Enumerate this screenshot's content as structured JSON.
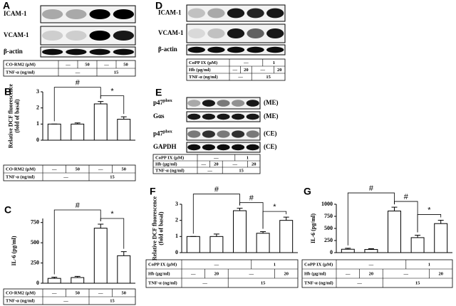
{
  "blots": [
    {
      "panel": "A",
      "rows": [
        {
          "text": "ICAM-1"
        },
        {
          "text": "VCAM-1"
        },
        {
          "text": "β-actin"
        }
      ],
      "treatments": [
        {
          "label": "CO-RM2 (μM)",
          "cells": [
            {
              "text": "—",
              "span": 1
            },
            {
              "text": "50",
              "span": 1
            },
            {
              "text": "—",
              "span": 1
            },
            {
              "text": "50",
              "span": 1
            }
          ]
        },
        {
          "label": "TNF-α (ng/ml)",
          "cells": [
            {
              "text": "—",
              "span": 2
            },
            {
              "text": "15",
              "span": 2
            }
          ]
        }
      ]
    },
    {
      "panel": "D",
      "rows": [
        {
          "text": "ICAM-1"
        },
        {
          "text": "VCAM-1"
        },
        {
          "text": "β-actin"
        }
      ],
      "treatments": [
        {
          "label": "CoPP IX (μM)",
          "cells": [
            {
              "text": "—",
              "span": 3
            },
            {
              "text": "1",
              "span": 2
            }
          ]
        },
        {
          "label": "Hb (μg/ml)",
          "cells": [
            {
              "text": "—",
              "span": 1
            },
            {
              "text": "20",
              "span": 1
            },
            {
              "text": "—",
              "span": 2
            },
            {
              "text": "20",
              "span": 1
            }
          ]
        },
        {
          "label": "TNF-α (ng/ml)",
          "cells": [
            {
              "text": "—",
              "span": 2
            },
            {
              "text": "15",
              "span": 3
            }
          ]
        }
      ]
    },
    {
      "panel": "E",
      "rows": [
        {
          "text": "p47",
          "sup": "phox",
          "tag": "(ME)"
        },
        {
          "text": "Gαs",
          "tag": "(ME)"
        },
        {
          "text": "p47",
          "sup": "phox",
          "tag": "(CE)"
        },
        {
          "text": "GAPDH",
          "tag": "(CE)"
        }
      ],
      "treatments": [
        {
          "label": "CoPP IX (μM)",
          "cells": [
            {
              "text": "—",
              "span": 3
            },
            {
              "text": "1",
              "span": 2
            }
          ]
        },
        {
          "label": "Hb (μg/ml)",
          "cells": [
            {
              "text": "—",
              "span": 1
            },
            {
              "text": "20",
              "span": 1
            },
            {
              "text": "—",
              "span": 2
            },
            {
              "text": "20",
              "span": 1
            }
          ]
        },
        {
          "label": "TNF-α (ng/ml)",
          "cells": [
            {
              "text": "—",
              "span": 2
            },
            {
              "text": "15",
              "span": 3
            }
          ]
        }
      ]
    }
  ],
  "chart_data": [
    {
      "type": "bar",
      "panel": "B",
      "ylabel": [
        "Relative DCF fluorescence",
        "(fold of basal)"
      ],
      "ylim": [
        0,
        3
      ],
      "yticks": [
        0,
        1,
        2,
        3
      ],
      "color": "#ffffff",
      "values": [
        1.0,
        1.0,
        2.25,
        1.3
      ],
      "errors": [
        0,
        0.07,
        0.15,
        0.15
      ],
      "annotations": [
        {
          "text": "#",
          "from": 0,
          "to": 2
        },
        {
          "text": "*",
          "from": 2,
          "to": 3
        }
      ],
      "treatments": [
        {
          "label": "CO-RM2 (μM)",
          "cells": [
            {
              "text": "—",
              "span": 1
            },
            {
              "text": "50",
              "span": 1
            },
            {
              "text": "—",
              "span": 1
            },
            {
              "text": "50",
              "span": 1
            }
          ]
        },
        {
          "label": "TNF-α (ng/ml)",
          "cells": [
            {
              "text": "—",
              "span": 2
            },
            {
              "text": "15",
              "span": 2
            }
          ]
        }
      ]
    },
    {
      "type": "bar",
      "panel": "C",
      "ylabel": [
        "IL-6 (pg/ml)"
      ],
      "ylim": [
        0,
        800
      ],
      "yticks": [
        0,
        250,
        500,
        750
      ],
      "color": "#ffffff",
      "values": [
        60,
        70,
        680,
        340
      ],
      "errors": [
        15,
        15,
        50,
        50
      ],
      "annotations": [
        {
          "text": "#",
          "from": 0,
          "to": 2
        },
        {
          "text": "*",
          "from": 2,
          "to": 3
        }
      ],
      "treatments": [
        {
          "label": "CO-RM2 (μM)",
          "cells": [
            {
              "text": "—",
              "span": 1
            },
            {
              "text": "50",
              "span": 1
            },
            {
              "text": "—",
              "span": 1
            },
            {
              "text": "50",
              "span": 1
            }
          ]
        },
        {
          "label": "TNF-α (ng/ml)",
          "cells": [
            {
              "text": "—",
              "span": 2
            },
            {
              "text": "15",
              "span": 2
            }
          ]
        }
      ]
    },
    {
      "type": "bar",
      "panel": "F",
      "ylabel": [
        "Relative DCF fluorescence",
        "(fold of basal)"
      ],
      "ylim": [
        0,
        3
      ],
      "yticks": [
        0,
        1,
        2,
        3
      ],
      "color": "#ffffff",
      "values": [
        1.0,
        1.0,
        2.6,
        1.2,
        2.0
      ],
      "errors": [
        0,
        0.15,
        0.15,
        0.1,
        0.2
      ],
      "annotations": [
        {
          "text": "#",
          "from": 0,
          "to": 2
        },
        {
          "text": "#",
          "from": 2,
          "to": 3
        },
        {
          "text": "*",
          "from": 3,
          "to": 4
        }
      ],
      "treatments": [
        {
          "label": "CoPP IX (μM)",
          "cells": [
            {
              "text": "—",
              "span": 3
            },
            {
              "text": "1",
              "span": 2
            }
          ]
        },
        {
          "label": "Hb (μg/ml)",
          "cells": [
            {
              "text": "—",
              "span": 1
            },
            {
              "text": "20",
              "span": 1
            },
            {
              "text": "—",
              "span": 2
            },
            {
              "text": "20",
              "span": 1
            }
          ]
        },
        {
          "label": "TNF-α (ng/ml)",
          "cells": [
            {
              "text": "—",
              "span": 2
            },
            {
              "text": "15",
              "span": 3
            }
          ]
        }
      ]
    },
    {
      "type": "bar",
      "panel": "G",
      "ylabel": [
        "IL-6 (pg/ml)"
      ],
      "ylim": [
        0,
        1000
      ],
      "yticks": [
        0,
        250,
        500,
        750,
        1000
      ],
      "color": "#ffffff",
      "values": [
        70,
        65,
        860,
        310,
        600
      ],
      "errors": [
        20,
        15,
        80,
        50,
        70
      ],
      "annotations": [
        {
          "text": "#",
          "from": 0,
          "to": 2
        },
        {
          "text": "#",
          "from": 2,
          "to": 3
        },
        {
          "text": "*",
          "from": 3,
          "to": 4
        }
      ],
      "treatments": [
        {
          "label": "CoPP IX (μM)",
          "cells": [
            {
              "text": "—",
              "span": 3
            },
            {
              "text": "1",
              "span": 2
            }
          ]
        },
        {
          "label": "Hb (μg/ml)",
          "cells": [
            {
              "text": "—",
              "span": 1
            },
            {
              "text": "20",
              "span": 1
            },
            {
              "text": "—",
              "span": 2
            },
            {
              "text": "20",
              "span": 1
            }
          ]
        },
        {
          "label": "TNF-α (ng/ml)",
          "cells": [
            {
              "text": "—",
              "span": 2
            },
            {
              "text": "15",
              "span": 3
            }
          ]
        }
      ]
    }
  ]
}
